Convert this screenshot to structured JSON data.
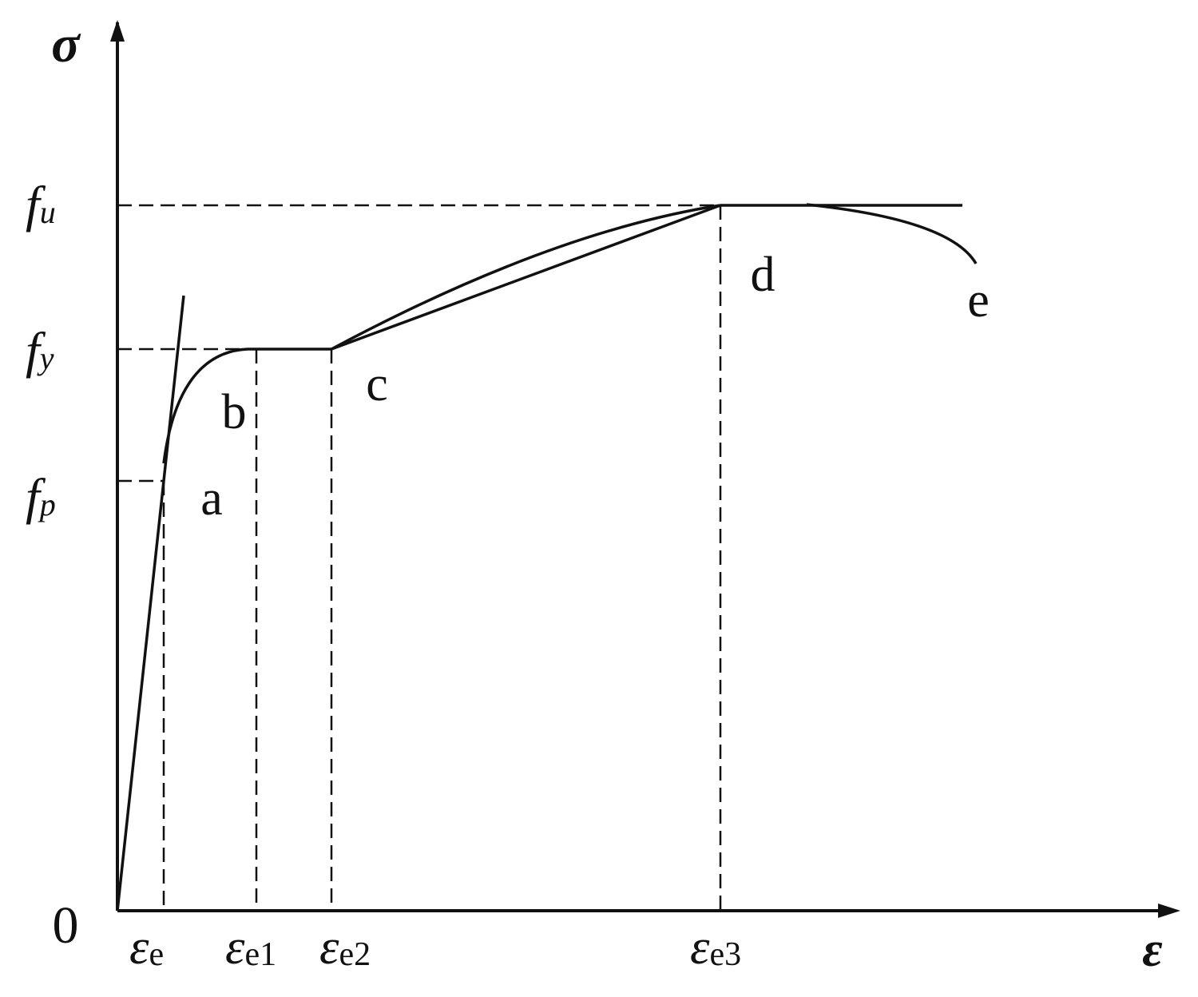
{
  "axes": {
    "y_label": "σ",
    "x_label": "ε",
    "origin": "0"
  },
  "y_labels": [
    {
      "main": "f",
      "sub": "u"
    },
    {
      "main": "f",
      "sub": "y"
    },
    {
      "main": "f",
      "sub": "p"
    }
  ],
  "x_labels": [
    {
      "main": "ε",
      "sub": "e"
    },
    {
      "main": "ε",
      "sub": "e1"
    },
    {
      "main": "ε",
      "sub": "e2"
    },
    {
      "main": "ε",
      "sub": "e3"
    }
  ],
  "points": [
    "a",
    "b",
    "c",
    "d",
    "e"
  ]
}
